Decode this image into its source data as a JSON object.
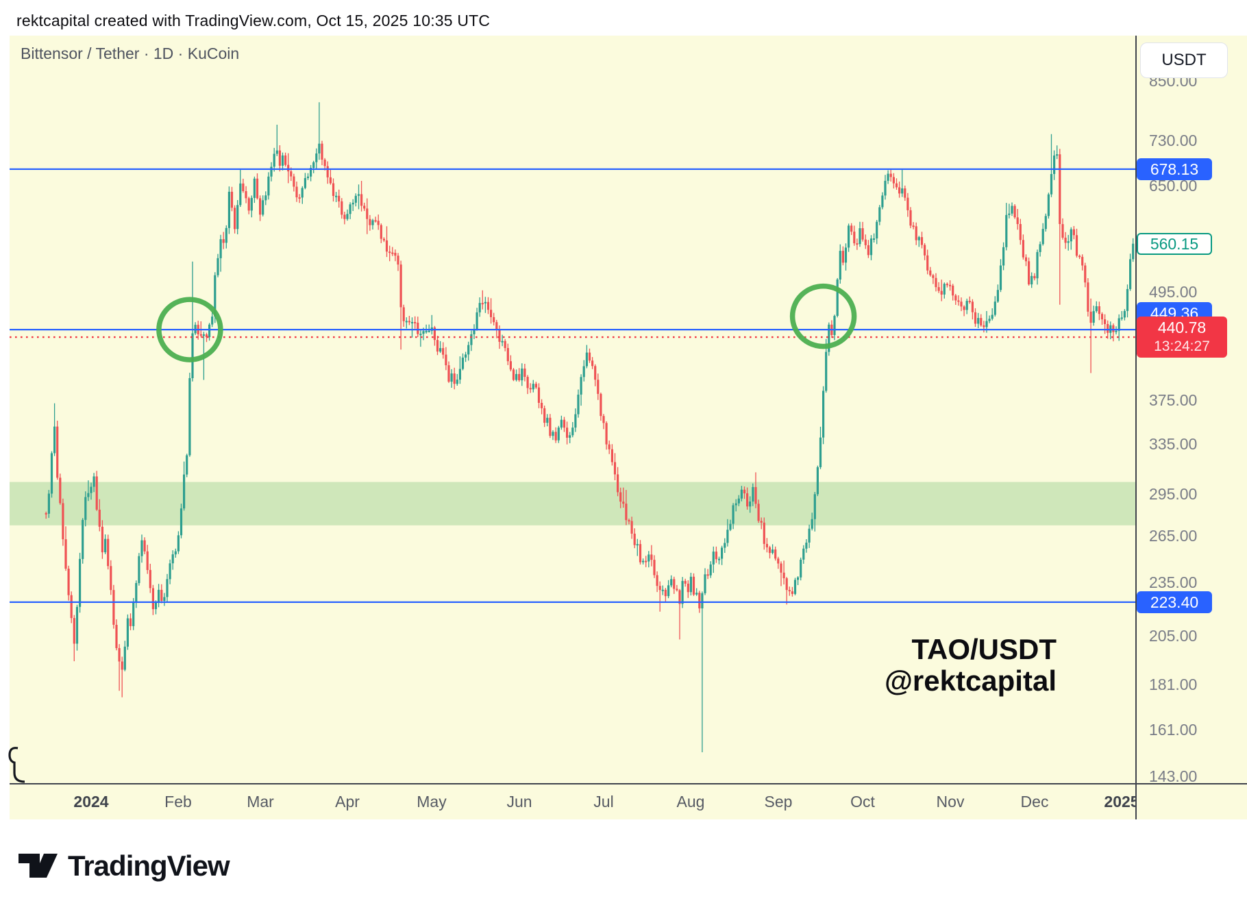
{
  "header": {
    "attribution": "rektcapital created with TradingView.com, Oct 15, 2025 10:35 UTC"
  },
  "chart": {
    "symbol_title": "Bittensor / Tether · 1D · KuCoin",
    "currency_button": "USDT",
    "watermark_line1": "TAO/USDT",
    "watermark_line2": "@rektcapital",
    "footer_logo_text": "TradingView"
  },
  "colors": {
    "pane_bg": "#fbfbdd",
    "candle_up": "#2d9e8f",
    "candle_down": "#ef5153",
    "level_blue": "#2962ff",
    "current_red": "#f23645",
    "zone_green": "#cfe7ba",
    "circle_green": "#4caf50",
    "tick_gray": "#787b86"
  },
  "price_scale": {
    "ticks": [
      "850.00",
      "730.00",
      "650.00",
      "495.00",
      "375.00",
      "335.00",
      "295.00",
      "265.00",
      "235.00",
      "205.00",
      "181.00",
      "161.00",
      "143.00"
    ],
    "tick_values": [
      850,
      730,
      650,
      495,
      375,
      335,
      295,
      265,
      235,
      205,
      181,
      161,
      143
    ],
    "badges": [
      {
        "name": "level-badge-678",
        "text": "678.13",
        "value": 678.13,
        "style": "blue"
      },
      {
        "name": "last-price-badge",
        "text": "560.15",
        "value": 560.15,
        "style": "teal"
      },
      {
        "name": "level-badge-449",
        "text": "449.36",
        "value": 449.36,
        "style": "blue",
        "y_override": 457
      },
      {
        "name": "current-price-badge",
        "text": "440.78",
        "sub": "13:24:27",
        "value": 440.78,
        "style": "red"
      },
      {
        "name": "level-badge-223",
        "text": "223.40",
        "value": 223.4,
        "style": "blue"
      }
    ]
  },
  "time_axis": [
    {
      "label": "2024",
      "date": "2024-01-01",
      "bold": true
    },
    {
      "label": "Feb",
      "date": "2024-02-01"
    },
    {
      "label": "Mar",
      "date": "2024-03-01"
    },
    {
      "label": "Apr",
      "date": "2024-04-01"
    },
    {
      "label": "May",
      "date": "2024-05-01"
    },
    {
      "label": "Jun",
      "date": "2024-06-01"
    },
    {
      "label": "Jul",
      "date": "2024-07-01"
    },
    {
      "label": "Aug",
      "date": "2024-08-01"
    },
    {
      "label": "Sep",
      "date": "2024-09-01"
    },
    {
      "label": "Oct",
      "date": "2024-10-01"
    },
    {
      "label": "Nov",
      "date": "2024-11-01"
    },
    {
      "label": "Dec",
      "date": "2024-12-01"
    },
    {
      "label": "2025",
      "date": "2025-01-01",
      "bold": true
    }
  ],
  "chart_data": {
    "type": "candlestick",
    "symbol": "TAO/USDT",
    "timeframe": "1D",
    "exchange": "KuCoin",
    "scale": "logarithmic",
    "visible_range": [
      "2023-12-16",
      "2025-01-05"
    ],
    "ylim": [
      143,
      850
    ],
    "horizontal_levels": [
      678.13,
      449.36,
      223.4
    ],
    "current_price": 440.78,
    "bar_countdown": "13:24:27",
    "last_visible_close": 560.15,
    "support_zone": {
      "top": 304,
      "bottom": 272
    },
    "circle_annotations": [
      {
        "name": "retest-circle-feb",
        "date": "2024-02-05",
        "price": 449.36
      },
      {
        "name": "retest-circle-sep",
        "date": "2024-09-17",
        "price": 465
      }
    ],
    "waypoints": [
      [
        "2023-12-16",
        285
      ],
      [
        "2023-12-17",
        296
      ],
      [
        "2023-12-18",
        330
      ],
      [
        "2023-12-19",
        352
      ],
      [
        "2023-12-20",
        310
      ],
      [
        "2023-12-21",
        290
      ],
      [
        "2023-12-22",
        262
      ],
      [
        "2023-12-23",
        240
      ],
      [
        "2023-12-24",
        228
      ],
      [
        "2023-12-25",
        215
      ],
      [
        "2023-12-26",
        202
      ],
      [
        "2023-12-27",
        222
      ],
      [
        "2023-12-28",
        248
      ],
      [
        "2023-12-29",
        272
      ],
      [
        "2023-12-30",
        288
      ],
      [
        "2023-12-31",
        295
      ],
      [
        "2024-01-01",
        298
      ],
      [
        "2024-01-02",
        305
      ],
      [
        "2024-01-03",
        285
      ],
      [
        "2024-01-04",
        268
      ],
      [
        "2024-01-05",
        252
      ],
      [
        "2024-01-06",
        260
      ],
      [
        "2024-01-07",
        245
      ],
      [
        "2024-01-08",
        228
      ],
      [
        "2024-01-09",
        210
      ],
      [
        "2024-01-10",
        198
      ],
      [
        "2024-01-11",
        192
      ],
      [
        "2024-01-12",
        188
      ],
      [
        "2024-01-13",
        202
      ],
      [
        "2024-01-14",
        215
      ],
      [
        "2024-01-15",
        208
      ],
      [
        "2024-01-16",
        224
      ],
      [
        "2024-01-17",
        238
      ],
      [
        "2024-01-18",
        252
      ],
      [
        "2024-01-19",
        262
      ],
      [
        "2024-01-20",
        255
      ],
      [
        "2024-01-21",
        242
      ],
      [
        "2024-01-22",
        230
      ],
      [
        "2024-01-23",
        218
      ],
      [
        "2024-01-24",
        225
      ],
      [
        "2024-01-25",
        232
      ],
      [
        "2024-01-26",
        222
      ],
      [
        "2024-01-27",
        228
      ],
      [
        "2024-01-28",
        236
      ],
      [
        "2024-01-29",
        244
      ],
      [
        "2024-01-30",
        252
      ],
      [
        "2024-01-31",
        258
      ],
      [
        "2024-02-01",
        262
      ],
      [
        "2024-02-02",
        280
      ],
      [
        "2024-02-03",
        305
      ],
      [
        "2024-02-04",
        330
      ],
      [
        "2024-02-05",
        400
      ],
      [
        "2024-02-06",
        438
      ],
      [
        "2024-02-07",
        452
      ],
      [
        "2024-02-08",
        445
      ],
      [
        "2024-02-09",
        440
      ],
      [
        "2024-02-10",
        438
      ],
      [
        "2024-02-11",
        447
      ],
      [
        "2024-02-12",
        455
      ],
      [
        "2024-02-13",
        470
      ],
      [
        "2024-02-14",
        510
      ],
      [
        "2024-02-15",
        540
      ],
      [
        "2024-02-16",
        575
      ],
      [
        "2024-02-17",
        560
      ],
      [
        "2024-02-18",
        590
      ],
      [
        "2024-02-19",
        632
      ],
      [
        "2024-02-20",
        610
      ],
      [
        "2024-02-21",
        585
      ],
      [
        "2024-02-22",
        620
      ],
      [
        "2024-02-23",
        655
      ],
      [
        "2024-02-24",
        640
      ],
      [
        "2024-02-25",
        620
      ],
      [
        "2024-02-26",
        600
      ],
      [
        "2024-02-27",
        630
      ],
      [
        "2024-02-28",
        652
      ],
      [
        "2024-02-29",
        625
      ],
      [
        "2024-03-01",
        600
      ],
      [
        "2024-03-02",
        625
      ],
      [
        "2024-03-04",
        660
      ],
      [
        "2024-03-06",
        700
      ],
      [
        "2024-03-07",
        720
      ],
      [
        "2024-03-08",
        695
      ],
      [
        "2024-03-09",
        710
      ],
      [
        "2024-03-11",
        680
      ],
      [
        "2024-03-12",
        655
      ],
      [
        "2024-03-14",
        630
      ],
      [
        "2024-03-16",
        650
      ],
      [
        "2024-03-18",
        672
      ],
      [
        "2024-03-20",
        695
      ],
      [
        "2024-03-22",
        715
      ],
      [
        "2024-03-23",
        690
      ],
      [
        "2024-03-25",
        665
      ],
      [
        "2024-03-27",
        640
      ],
      [
        "2024-03-29",
        615
      ],
      [
        "2024-03-31",
        592
      ],
      [
        "2024-04-01",
        600
      ],
      [
        "2024-04-03",
        622
      ],
      [
        "2024-04-05",
        638
      ],
      [
        "2024-04-07",
        610
      ],
      [
        "2024-04-09",
        585
      ],
      [
        "2024-04-11",
        598
      ],
      [
        "2024-04-13",
        570
      ],
      [
        "2024-04-15",
        545
      ],
      [
        "2024-04-17",
        552
      ],
      [
        "2024-04-19",
        528
      ],
      [
        "2024-04-20",
        478
      ],
      [
        "2024-04-22",
        455
      ],
      [
        "2024-04-24",
        462
      ],
      [
        "2024-04-26",
        440
      ],
      [
        "2024-04-28",
        452
      ],
      [
        "2024-04-30",
        448
      ],
      [
        "2024-05-01",
        445
      ],
      [
        "2024-05-03",
        430
      ],
      [
        "2024-05-05",
        415
      ],
      [
        "2024-05-07",
        398
      ],
      [
        "2024-05-09",
        392
      ],
      [
        "2024-05-11",
        410
      ],
      [
        "2024-05-13",
        425
      ],
      [
        "2024-05-15",
        440
      ],
      [
        "2024-05-17",
        465
      ],
      [
        "2024-05-19",
        485
      ],
      [
        "2024-05-21",
        478
      ],
      [
        "2024-05-23",
        460
      ],
      [
        "2024-05-25",
        440
      ],
      [
        "2024-05-27",
        425
      ],
      [
        "2024-05-29",
        405
      ],
      [
        "2024-05-31",
        395
      ],
      [
        "2024-06-02",
        400
      ],
      [
        "2024-06-04",
        385
      ],
      [
        "2024-06-06",
        392
      ],
      [
        "2024-06-08",
        372
      ],
      [
        "2024-06-10",
        358
      ],
      [
        "2024-06-12",
        348
      ],
      [
        "2024-06-14",
        342
      ],
      [
        "2024-06-16",
        352
      ],
      [
        "2024-06-18",
        340
      ],
      [
        "2024-06-20",
        355
      ],
      [
        "2024-06-22",
        378
      ],
      [
        "2024-06-24",
        408
      ],
      [
        "2024-06-25",
        420
      ],
      [
        "2024-06-27",
        405
      ],
      [
        "2024-06-29",
        380
      ],
      [
        "2024-06-30",
        365
      ],
      [
        "2024-07-01",
        348
      ],
      [
        "2024-07-03",
        330
      ],
      [
        "2024-07-05",
        305
      ],
      [
        "2024-07-07",
        292
      ],
      [
        "2024-07-09",
        280
      ],
      [
        "2024-07-11",
        268
      ],
      [
        "2024-07-13",
        256
      ],
      [
        "2024-07-15",
        246
      ],
      [
        "2024-07-17",
        253
      ],
      [
        "2024-07-19",
        241
      ],
      [
        "2024-07-21",
        230
      ],
      [
        "2024-07-23",
        226
      ],
      [
        "2024-07-25",
        236
      ],
      [
        "2024-07-27",
        229
      ],
      [
        "2024-07-28",
        225
      ],
      [
        "2024-07-29",
        239
      ],
      [
        "2024-07-31",
        233
      ],
      [
        "2024-08-01",
        235
      ],
      [
        "2024-08-02",
        230
      ],
      [
        "2024-08-03",
        228
      ],
      [
        "2024-08-04",
        220
      ],
      [
        "2024-08-05",
        232
      ],
      [
        "2024-08-06",
        238
      ],
      [
        "2024-08-07",
        243
      ],
      [
        "2024-08-09",
        255
      ],
      [
        "2024-08-11",
        248
      ],
      [
        "2024-08-13",
        263
      ],
      [
        "2024-08-15",
        276
      ],
      [
        "2024-08-17",
        290
      ],
      [
        "2024-08-19",
        302
      ],
      [
        "2024-08-21",
        288
      ],
      [
        "2024-08-23",
        296
      ],
      [
        "2024-08-25",
        279
      ],
      [
        "2024-08-27",
        263
      ],
      [
        "2024-08-29",
        255
      ],
      [
        "2024-08-31",
        248
      ],
      [
        "2024-09-02",
        240
      ],
      [
        "2024-09-04",
        231
      ],
      [
        "2024-09-06",
        228
      ],
      [
        "2024-09-08",
        239
      ],
      [
        "2024-09-10",
        253
      ],
      [
        "2024-09-12",
        271
      ],
      [
        "2024-09-14",
        291
      ],
      [
        "2024-09-15",
        311
      ],
      [
        "2024-09-16",
        346
      ],
      [
        "2024-09-17",
        386
      ],
      [
        "2024-09-18",
        431
      ],
      [
        "2024-09-19",
        455
      ],
      [
        "2024-09-20",
        441
      ],
      [
        "2024-09-21",
        471
      ],
      [
        "2024-09-22",
        512
      ],
      [
        "2024-09-23",
        546
      ],
      [
        "2024-09-24",
        531
      ],
      [
        "2024-09-25",
        556
      ],
      [
        "2024-09-26",
        586
      ],
      [
        "2024-09-28",
        561
      ],
      [
        "2024-09-30",
        576
      ],
      [
        "2024-10-01",
        574
      ],
      [
        "2024-10-03",
        546
      ],
      [
        "2024-10-05",
        572
      ],
      [
        "2024-10-07",
        612
      ],
      [
        "2024-10-09",
        650
      ],
      [
        "2024-10-11",
        668
      ],
      [
        "2024-10-13",
        641
      ],
      [
        "2024-10-15",
        655
      ],
      [
        "2024-10-17",
        602
      ],
      [
        "2024-10-19",
        581
      ],
      [
        "2024-10-21",
        562
      ],
      [
        "2024-10-23",
        541
      ],
      [
        "2024-10-25",
        522
      ],
      [
        "2024-10-27",
        509
      ],
      [
        "2024-10-29",
        499
      ],
      [
        "2024-10-31",
        506
      ],
      [
        "2024-11-02",
        498
      ],
      [
        "2024-11-04",
        481
      ],
      [
        "2024-11-06",
        473
      ],
      [
        "2024-11-08",
        489
      ],
      [
        "2024-11-10",
        463
      ],
      [
        "2024-11-12",
        455
      ],
      [
        "2024-11-14",
        452
      ],
      [
        "2024-11-16",
        461
      ],
      [
        "2024-11-18",
        506
      ],
      [
        "2024-11-20",
        556
      ],
      [
        "2024-11-21",
        601
      ],
      [
        "2024-11-23",
        612
      ],
      [
        "2024-11-25",
        581
      ],
      [
        "2024-11-27",
        546
      ],
      [
        "2024-11-29",
        511
      ],
      [
        "2024-12-01",
        521
      ],
      [
        "2024-12-03",
        561
      ],
      [
        "2024-12-05",
        611
      ],
      [
        "2024-12-07",
        681
      ],
      [
        "2024-12-09",
        701
      ],
      [
        "2024-12-10",
        591
      ],
      [
        "2024-12-12",
        561
      ],
      [
        "2024-12-14",
        581
      ],
      [
        "2024-12-16",
        546
      ],
      [
        "2024-12-18",
        531
      ],
      [
        "2024-12-20",
        471
      ],
      [
        "2024-12-21",
        456
      ],
      [
        "2024-12-23",
        476
      ],
      [
        "2024-12-25",
        466
      ],
      [
        "2024-12-27",
        451
      ],
      [
        "2024-12-29",
        446
      ],
      [
        "2024-12-31",
        456
      ],
      [
        "2025-01-02",
        471
      ],
      [
        "2025-01-03",
        506
      ],
      [
        "2025-01-04",
        545
      ],
      [
        "2025-01-05",
        560.15
      ]
    ],
    "wick_extremes": [
      {
        "date": "2023-12-19",
        "high": 372
      },
      {
        "date": "2023-12-26",
        "low": 192
      },
      {
        "date": "2024-01-11",
        "low": 178
      },
      {
        "date": "2024-01-12",
        "low": 175
      },
      {
        "date": "2024-02-06",
        "high": 535
      },
      {
        "date": "2024-02-10",
        "low": 395
      },
      {
        "date": "2024-02-23",
        "high": 678
      },
      {
        "date": "2024-03-07",
        "high": 760
      },
      {
        "date": "2024-03-22",
        "high": 805
      },
      {
        "date": "2024-04-05",
        "high": 652
      },
      {
        "date": "2024-04-20",
        "low": 427
      },
      {
        "date": "2024-05-19",
        "high": 497
      },
      {
        "date": "2024-06-25",
        "high": 432
      },
      {
        "date": "2024-07-21",
        "low": 218
      },
      {
        "date": "2024-07-28",
        "low": 203
      },
      {
        "date": "2024-08-05",
        "low": 152
      },
      {
        "date": "2024-09-04",
        "low": 222
      },
      {
        "date": "2024-09-19",
        "low": 428
      },
      {
        "date": "2024-10-11",
        "high": 679
      },
      {
        "date": "2024-10-15",
        "high": 678
      },
      {
        "date": "2024-11-21",
        "high": 622
      },
      {
        "date": "2024-12-07",
        "high": 742
      },
      {
        "date": "2024-12-10",
        "low": 479
      },
      {
        "date": "2024-12-21",
        "low": 402
      },
      {
        "date": "2024-12-29",
        "low": 436
      },
      {
        "date": "2025-01-05",
        "high": 568
      }
    ]
  }
}
